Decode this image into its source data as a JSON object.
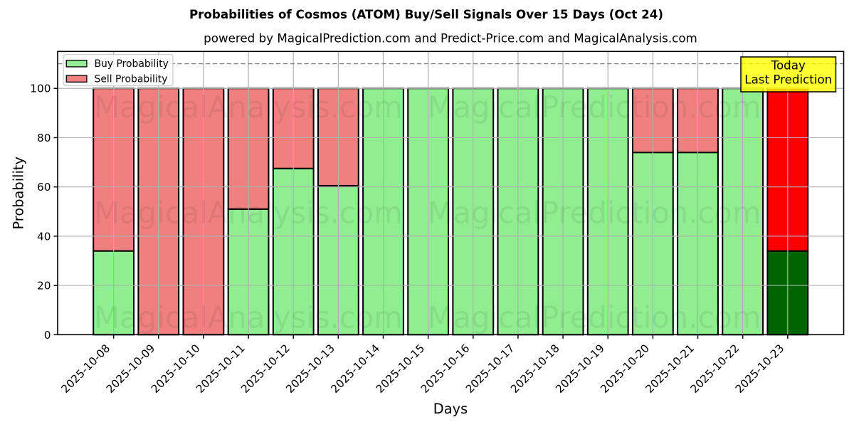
{
  "figure": {
    "title": "Probabilities of Cosmos (ATOM) Buy/Sell Signals Over 15 Days (Oct 24)",
    "subtitle": "powered by MagicalPrediction.com and Predict-Price.com and MagicalAnalysis.com"
  },
  "chart_data": {
    "type": "bar",
    "stacked": true,
    "title": "Probabilities of Cosmos (ATOM) Buy/Sell Signals Over 15 Days (Oct 24)",
    "subtitle": "powered by MagicalPrediction.com and Predict-Price.com and MagicalAnalysis.com",
    "xlabel": "Days",
    "ylabel": "Probability",
    "categories": [
      "2025-10-08",
      "2025-10-09",
      "2025-10-10",
      "2025-10-11",
      "2025-10-12",
      "2025-10-13",
      "2025-10-14",
      "2025-10-15",
      "2025-10-16",
      "2025-10-17",
      "2025-10-18",
      "2025-10-19",
      "2025-10-20",
      "2025-10-21",
      "2025-10-22",
      "2025-10-23"
    ],
    "series": [
      {
        "name": "Buy Probability",
        "color": "#90EE90",
        "today_color": "#006400",
        "values": [
          34,
          0,
          0,
          51,
          67.5,
          60.5,
          100,
          100,
          100,
          100,
          100,
          100,
          74,
          74,
          100,
          34
        ]
      },
      {
        "name": "Sell Probability",
        "color": "#F08080",
        "today_color": "#FF0000",
        "values": [
          66,
          100,
          100,
          49,
          32.5,
          39.5,
          0,
          0,
          0,
          0,
          0,
          0,
          26,
          26,
          0,
          66
        ]
      }
    ],
    "today_index": 15,
    "ylim": [
      0,
      115
    ],
    "yticks": [
      0,
      20,
      40,
      60,
      80,
      100
    ],
    "grid": true,
    "grid_color": "#b0b0b0",
    "dashed_line_y": 110,
    "dashed_line_color": "#808080",
    "bar_edge_color": "#000000",
    "legend_position": "upper left",
    "background_color": "#ffffff"
  },
  "legend": {
    "items": [
      {
        "label": "Buy Probability",
        "color": "#90EE90"
      },
      {
        "label": "Sell Probability",
        "color": "#F08080"
      }
    ]
  },
  "annotation": {
    "line1": "Today",
    "line2": "Last Prediction",
    "bg_color": "#FFFF00",
    "border_color": "#000000"
  },
  "watermarks": {
    "left_text": "MagicalAnalysis.com",
    "right_text": "MagicalPrediction.com",
    "color": "#FF0000"
  }
}
